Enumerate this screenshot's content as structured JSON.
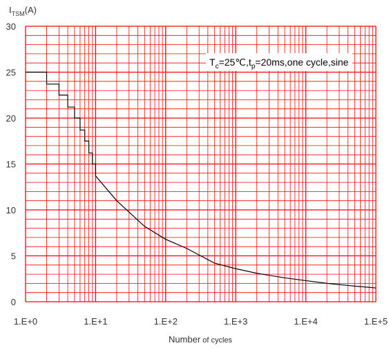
{
  "chart_data": {
    "type": "line",
    "ylabel_main": "I",
    "ylabel_sub": "TSM",
    "ylabel_unit": "(A)",
    "xlabel_main": "Number",
    "xlabel_small": " of cycles",
    "annotation": {
      "parts": [
        {
          "text": "T",
          "sub": false
        },
        {
          "text": "c",
          "sub": true
        },
        {
          "text": "=25℃,t",
          "sub": false
        },
        {
          "text": "p",
          "sub": true
        },
        {
          "text": "=20ms,one cycle,sine",
          "sub": false
        }
      ]
    },
    "x_scale": "log",
    "xlim": [
      1,
      100000
    ],
    "ylim": [
      0,
      30
    ],
    "x_ticks": [
      {
        "value": 1,
        "label": "1.E+0"
      },
      {
        "value": 10,
        "label": "1.E+1"
      },
      {
        "value": 100,
        "label": "1.E+2"
      },
      {
        "value": 1000,
        "label": "1.E+3"
      },
      {
        "value": 10000,
        "label": "1.E+4"
      },
      {
        "value": 100000,
        "label": "1.E+5"
      }
    ],
    "y_ticks": [
      {
        "value": 0,
        "label": "0"
      },
      {
        "value": 5,
        "label": "5"
      },
      {
        "value": 10,
        "label": "10"
      },
      {
        "value": 15,
        "label": "15"
      },
      {
        "value": 20,
        "label": "20"
      },
      {
        "value": 25,
        "label": "25"
      },
      {
        "value": 30,
        "label": "30"
      }
    ],
    "y_minor_step": 1,
    "grid": true,
    "colors": {
      "grid": "#ff0000",
      "series": "#000000",
      "tick_text": "#333333"
    },
    "series": [
      {
        "style": "step",
        "points": [
          {
            "x": 1,
            "y": 25.0
          },
          {
            "x": 2,
            "y": 23.7
          },
          {
            "x": 3,
            "y": 22.5
          },
          {
            "x": 4,
            "y": 21.2
          },
          {
            "x": 5,
            "y": 20.0
          },
          {
            "x": 6,
            "y": 18.7
          },
          {
            "x": 7,
            "y": 17.5
          },
          {
            "x": 8,
            "y": 16.2
          },
          {
            "x": 9,
            "y": 15.0
          },
          {
            "x": 10,
            "y": 13.7
          },
          {
            "x": 20,
            "y": 11.0
          },
          {
            "x": 50,
            "y": 8.2
          },
          {
            "x": 100,
            "y": 6.8
          },
          {
            "x": 200,
            "y": 5.8
          },
          {
            "x": 500,
            "y": 4.2
          },
          {
            "x": 1000,
            "y": 3.6
          },
          {
            "x": 2000,
            "y": 3.1
          },
          {
            "x": 5000,
            "y": 2.6
          },
          {
            "x": 10000,
            "y": 2.3
          },
          {
            "x": 20000,
            "y": 2.0
          },
          {
            "x": 50000,
            "y": 1.7
          },
          {
            "x": 100000,
            "y": 1.5
          }
        ]
      }
    ]
  }
}
